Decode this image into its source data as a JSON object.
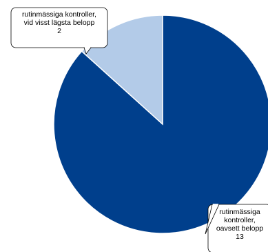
{
  "chart_data": {
    "type": "pie",
    "slices": [
      {
        "label_lines": [
          "rutinmässiga kontroller,",
          "vid visst lägsta belopp",
          "2"
        ],
        "value": 2,
        "color": "#b3cbe8"
      },
      {
        "label_lines": [
          "rutinmässiga",
          "kontroller,",
          "oavsett belopp",
          "13"
        ],
        "value": 13,
        "color": "#003f8c"
      }
    ],
    "start_angle_deg": 0,
    "direction": "counterclockwise"
  }
}
